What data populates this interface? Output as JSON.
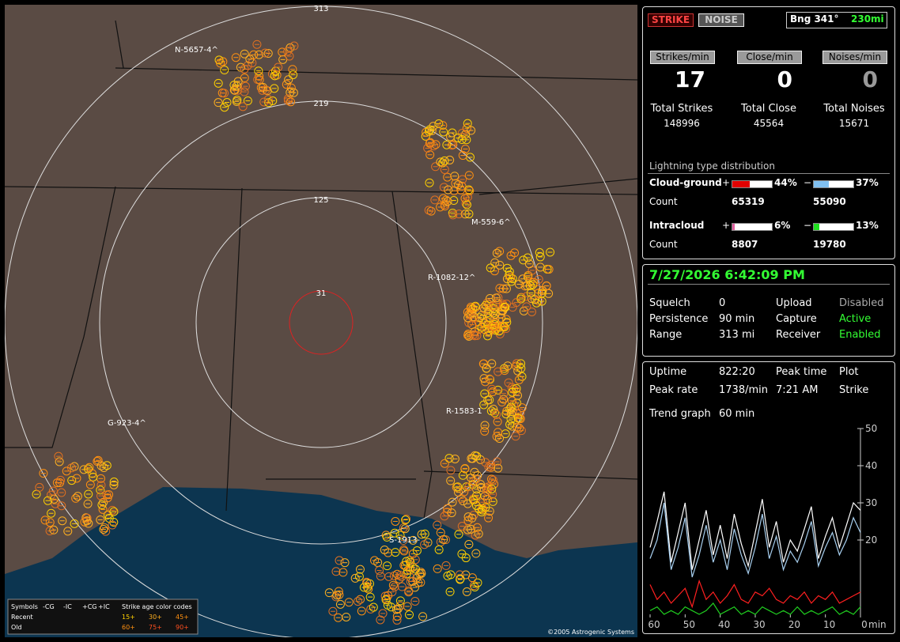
{
  "header": {
    "strike_button": "STRIKE",
    "noise_button": "NOISE",
    "bearing": "Bng 341°",
    "range": "230mi"
  },
  "rates": {
    "labels": [
      "Strikes/min",
      "Close/min",
      "Noises/min"
    ],
    "values": [
      17,
      0,
      0
    ],
    "total_labels": [
      "Total Strikes",
      "Total Close",
      "Total Noises"
    ],
    "totals": [
      148996,
      45564,
      15671
    ]
  },
  "distribution": {
    "title": "Lightning type distribution",
    "count_label": "Count",
    "rows": [
      {
        "name": "Cloud-ground",
        "pos_sign": "+",
        "pos_pct": {
          "value": 44,
          "label": "44%"
        },
        "neg_sign": "−",
        "neg_pct": {
          "value": 37,
          "label": "37%"
        },
        "pos_count": 65319,
        "neg_count": 55090
      },
      {
        "name": "Intracloud",
        "pos_sign": "+",
        "pos_pct": {
          "value": 6,
          "label": "6%"
        },
        "neg_sign": "−",
        "neg_pct": {
          "value": 13,
          "label": "13%"
        },
        "pos_count": 8807,
        "neg_count": 19780
      }
    ]
  },
  "status": {
    "datetime": "7/27/2026 6:42:09 PM",
    "rows": [
      [
        "Squelch",
        "0",
        "Upload",
        "Disabled"
      ],
      [
        "Persistence",
        "90 min",
        "Capture",
        "Active"
      ],
      [
        "Range",
        "313 mi",
        "Receiver",
        "Enabled"
      ]
    ]
  },
  "stats": {
    "rows": [
      [
        "Uptime",
        "822:20",
        "Peak time",
        "Plot"
      ],
      [
        "Peak rate",
        "1738/min",
        "7:21 AM",
        "Strike"
      ]
    ],
    "trend_label": "Trend graph",
    "trend_span": "60 min"
  },
  "trend": {
    "type": "line",
    "x": [
      60,
      58,
      56,
      54,
      52,
      50,
      48,
      46,
      44,
      42,
      40,
      38,
      36,
      34,
      32,
      30,
      28,
      26,
      24,
      22,
      20,
      18,
      16,
      14,
      12,
      10,
      8,
      6,
      4,
      2,
      0
    ],
    "series": [
      {
        "color": "#ffffff",
        "values": [
          18,
          25,
          33,
          14,
          22,
          30,
          12,
          20,
          28,
          16,
          24,
          15,
          27,
          19,
          13,
          22,
          31,
          18,
          25,
          14,
          20,
          17,
          23,
          29,
          15,
          21,
          26,
          18,
          24,
          30,
          28
        ]
      },
      {
        "color": "#a8d0f0",
        "values": [
          15,
          20,
          30,
          12,
          18,
          26,
          10,
          16,
          24,
          14,
          20,
          12,
          23,
          16,
          11,
          18,
          27,
          15,
          21,
          12,
          17,
          14,
          19,
          25,
          13,
          18,
          22,
          16,
          20,
          26,
          22
        ]
      },
      {
        "color": "#ff2020",
        "values": [
          8,
          4,
          6,
          3,
          5,
          7,
          2,
          9,
          4,
          6,
          3,
          5,
          8,
          4,
          3,
          6,
          5,
          7,
          4,
          3,
          5,
          4,
          6,
          3,
          5,
          4,
          6,
          3,
          4,
          5,
          6
        ]
      },
      {
        "color": "#20d020",
        "values": [
          1,
          2,
          0,
          1,
          0,
          2,
          1,
          0,
          1,
          3,
          0,
          1,
          2,
          0,
          1,
          0,
          2,
          1,
          0,
          1,
          0,
          2,
          0,
          1,
          0,
          1,
          2,
          0,
          1,
          0,
          2
        ]
      }
    ],
    "xlim": [
      60,
      0
    ],
    "ylim": [
      0,
      50
    ],
    "xticks": [
      60,
      50,
      40,
      30,
      20,
      10,
      0
    ],
    "yticks": [
      20,
      30,
      40,
      50
    ],
    "x_label": "min"
  },
  "map": {
    "rings": [
      "313",
      "219",
      "125",
      "31"
    ],
    "cells": [
      "N-5657-4^",
      "M-559-6^",
      "R-1082-12^",
      "R-1583-1",
      "G-923-4^",
      "S-1913-"
    ],
    "legend": {
      "symbols": "Symbols",
      "types": [
        "-CG",
        "-IC",
        "+CG",
        "+IC"
      ],
      "age_title": "Strike age color codes",
      "recent": "Recent",
      "old": "Old",
      "recent_ages": [
        "15+",
        "30+",
        "45+"
      ],
      "old_ages": [
        "60+",
        "75+",
        "90+"
      ]
    },
    "copyright": "©2005 Astrogenic Systems"
  }
}
